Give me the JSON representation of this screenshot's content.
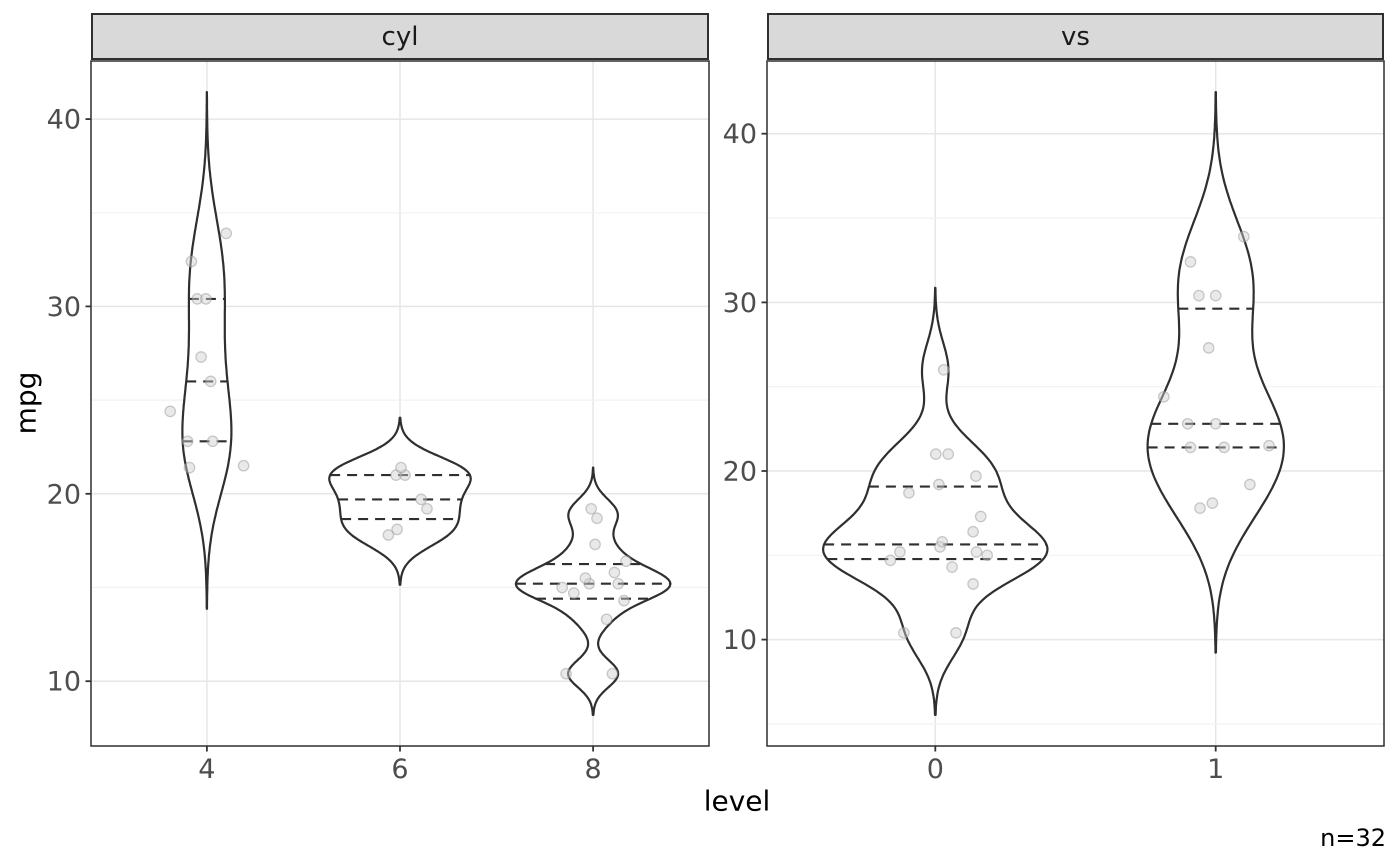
{
  "chart_data": {
    "type": "violin",
    "xlabel": "level",
    "ylabel": "mpg",
    "caption": "n=32",
    "n_total": 32,
    "y_ticks": [
      10,
      20,
      30,
      40
    ],
    "quantiles": [
      0.25,
      0.5,
      0.75
    ],
    "legend": "none",
    "facets": [
      {
        "label": "cyl",
        "x_tick_labels": [
          "4",
          "6",
          "8"
        ],
        "groups": [
          {
            "level": "4",
            "values": [
              22.8,
              24.4,
              22.8,
              32.4,
              30.4,
              33.9,
              21.5,
              27.3,
              26.0,
              30.4,
              21.4
            ],
            "jitter": [
              -0.1,
              -0.19,
              0.03,
              -0.08,
              -0.05,
              0.1,
              0.19,
              -0.03,
              0.02,
              -0.005,
              -0.09
            ],
            "quartiles": [
              22.8,
              26.0,
              30.4
            ]
          },
          {
            "level": "6",
            "values": [
              21.0,
              21.0,
              21.4,
              18.1,
              19.2,
              17.8,
              19.7
            ],
            "jitter": [
              -0.02,
              0.026,
              0.005,
              -0.015,
              0.14,
              -0.06,
              0.11
            ],
            "quartiles": [
              18.65,
              19.7,
              21.0
            ]
          },
          {
            "level": "8",
            "values": [
              18.7,
              14.3,
              16.4,
              17.3,
              15.2,
              10.4,
              10.4,
              14.7,
              15.5,
              15.2,
              13.3,
              19.2,
              15.8,
              15.0
            ],
            "jitter": [
              0.02,
              0.16,
              0.17,
              0.01,
              -0.02,
              -0.14,
              0.1,
              -0.1,
              -0.04,
              0.13,
              0.07,
              -0.01,
              0.11,
              -0.16
            ],
            "quartiles": [
              14.4,
              15.2,
              16.25
            ]
          }
        ]
      },
      {
        "label": "vs",
        "x_tick_labels": [
          "0",
          "1"
        ],
        "groups": [
          {
            "level": "0",
            "values": [
              21.0,
              21.0,
              18.7,
              14.3,
              16.4,
              17.3,
              15.2,
              10.4,
              10.4,
              14.7,
              15.5,
              15.2,
              13.3,
              19.2,
              26.0,
              15.8,
              19.7,
              15.0
            ],
            "jitter": [
              0.002,
              0.046,
              -0.094,
              0.06,
              0.135,
              0.162,
              -0.126,
              -0.112,
              0.074,
              -0.16,
              0.017,
              0.147,
              0.135,
              0.013,
              0.03,
              0.025,
              0.145,
              0.185
            ],
            "quartiles": [
              14.775,
              15.65,
              19.075
            ]
          },
          {
            "level": "1",
            "values": [
              22.8,
              21.4,
              18.1,
              24.4,
              22.8,
              19.2,
              17.8,
              32.4,
              30.4,
              33.9,
              21.5,
              27.3,
              30.4,
              21.4
            ],
            "jitter": [
              -0.1,
              0.03,
              -0.012,
              -0.185,
              0.0,
              0.122,
              -0.056,
              -0.09,
              -0.06,
              0.1,
              0.19,
              -0.025,
              0.0,
              -0.09
            ],
            "quartiles": [
              21.4,
              22.8,
              29.625
            ]
          }
        ]
      }
    ],
    "style": {
      "violin_stroke": "#2f2f2f",
      "violin_fill": "#ffffff",
      "quantile_stroke": "#2f2f2f",
      "point_fill": "#cfcfcf",
      "point_stroke": "#9a9a9a",
      "grid_major": "#e6e6e6",
      "grid_minor": "#f2f2f2",
      "panel_border": "#2f2f2f",
      "strip_fill": "#d9d9d9",
      "strip_border": "#2f2f2f",
      "tick_color": "#333333",
      "tick_label_color": "#4d4d4d",
      "title_color": "#000000",
      "background": "#ffffff"
    }
  }
}
